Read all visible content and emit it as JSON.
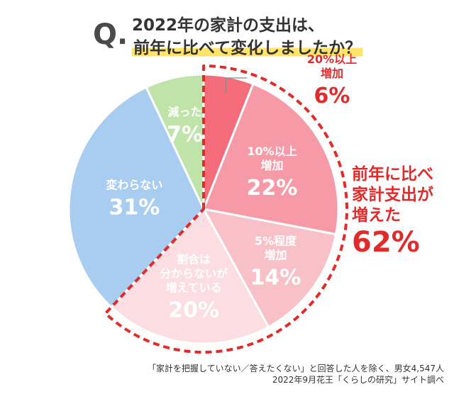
{
  "question": {
    "mark": "Q.",
    "line1": "2022年の家計の支出は、",
    "line2": "前年に比べて変化しましたか？"
  },
  "chart_data": {
    "type": "pie",
    "start_angle_deg": 0,
    "direction": "clockwise",
    "slices": [
      {
        "label": "20%以上\n増加",
        "value": 6,
        "display": "6%",
        "color": "#f56c7b"
      },
      {
        "label": "10%以上\n増加",
        "value": 22,
        "display": "22%",
        "color": "#f59aa6"
      },
      {
        "label": "5%程度\n増加",
        "value": 14,
        "display": "14%",
        "color": "#f8c1c8"
      },
      {
        "label": "割合は\n分からないが\n増えている",
        "value": 20,
        "display": "20%",
        "color": "#fbdde2"
      },
      {
        "label": "変わらない",
        "value": 31,
        "display": "31%",
        "color": "#a9cdf0"
      },
      {
        "label": "減った",
        "value": 7,
        "display": "7%",
        "color": "#bfe3a8"
      }
    ],
    "highlight": {
      "label": "前年に比べ\n家計支出が\n増えた",
      "value": "62%",
      "color": "#e12b2b"
    }
  },
  "footnote": {
    "line1": "「家計を把握していない／答えたくない」と回答した人を除く、男女4,547人",
    "line2": "2022年9月花王「くらしの研究」サイト調べ"
  }
}
